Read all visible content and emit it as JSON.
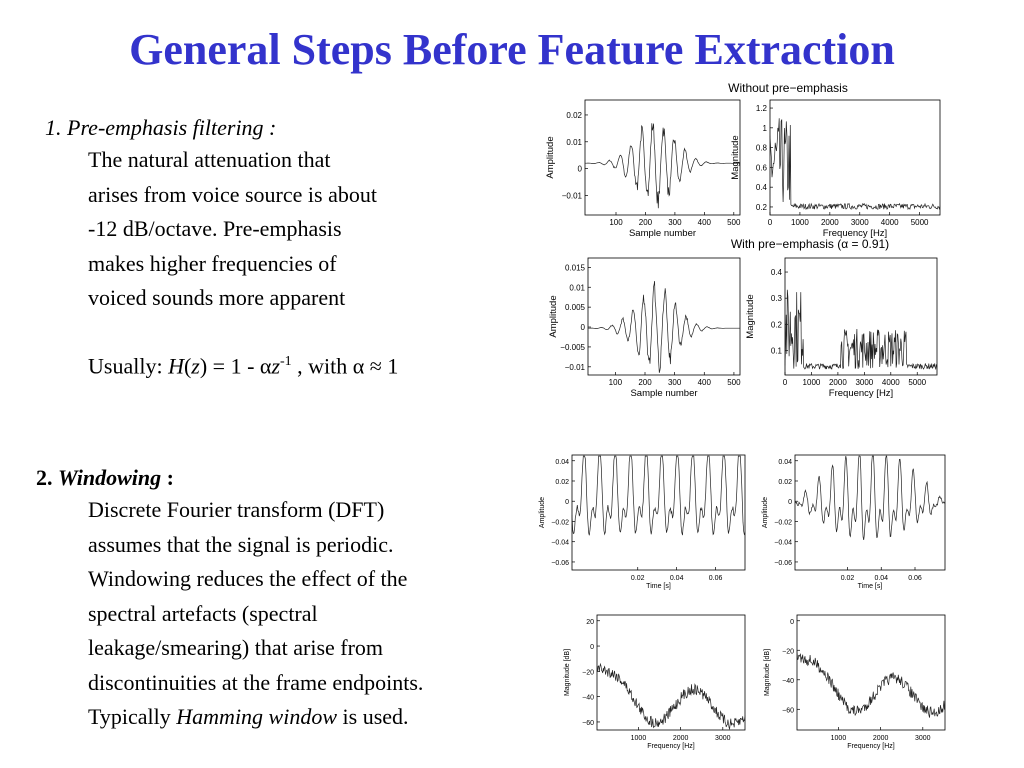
{
  "title": "General Steps Before Feature Extraction",
  "section1": {
    "heading": "1. Pre-emphasis filtering :",
    "lines": [
      "The natural attenuation that",
      "arises from voice source is about",
      "-12 dB/octave. Pre-emphasis",
      "makes higher frequencies of",
      "voiced sounds more apparent"
    ],
    "formula": [
      "Usually: ",
      "H",
      "(",
      "z",
      ") = 1 - α",
      "z",
      "-1",
      " , with α ≈ 1"
    ]
  },
  "section2": {
    "number": "2.",
    "heading": "Windowing",
    "colon": " :",
    "lines": [
      "Discrete Fourier transform (DFT)",
      "assumes that the signal is periodic.",
      "Windowing reduces the effect of the",
      "spectral artefacts (spectral",
      "leakage/smearing) that arise from",
      "discontinuities at the frame endpoints."
    ],
    "last_line": [
      "Typically ",
      "Hamming window",
      " is used."
    ]
  },
  "figure1": {
    "title_top": "Without pre−emphasis",
    "title_bottom": "With pre−emphasis (α = 0.91)",
    "panels": [
      {
        "ylabel": "Amplitude",
        "xlabel": "Sample number",
        "yticks": [
          "0.02",
          "0.01",
          "0",
          "−0.01"
        ],
        "xticks": [
          "100",
          "200",
          "300",
          "400",
          "500"
        ]
      },
      {
        "ylabel": "Magnitude",
        "xlabel": "Frequency [Hz]",
        "yticks": [
          "1.2",
          "1",
          "0.8",
          "0.6",
          "0.4",
          "0.2"
        ],
        "xticks": [
          "0",
          "1000",
          "2000",
          "3000",
          "4000",
          "5000"
        ]
      },
      {
        "ylabel": "Amplitude",
        "xlabel": "Sample number",
        "yticks": [
          "0.015",
          "0.01",
          "0.005",
          "0",
          "−0.005",
          "−0.01"
        ],
        "xticks": [
          "100",
          "200",
          "300",
          "400",
          "500"
        ]
      },
      {
        "ylabel": "Magnitude",
        "xlabel": "Frequency [Hz]",
        "yticks": [
          "0.4",
          "0.3",
          "0.2",
          "0.1"
        ],
        "xticks": [
          "0",
          "1000",
          "2000",
          "3000",
          "4000",
          "5000"
        ]
      }
    ]
  },
  "figure2": {
    "panels": [
      {
        "ylabel": "Amplitude",
        "xlabel": "Time [s]",
        "yticks": [
          "0.04",
          "0.02",
          "0",
          "−0.02",
          "−0.04",
          "−0.06"
        ],
        "xticks": [
          "0.02",
          "0.04",
          "0.06"
        ]
      },
      {
        "ylabel": "Amplitude",
        "xlabel": "Time [s]",
        "yticks": [
          "0.04",
          "0.02",
          "0",
          "−0.02",
          "−0.04",
          "−0.06"
        ],
        "xticks": [
          "0.02",
          "0.04",
          "0.06"
        ]
      },
      {
        "ylabel": "Magnitude [dB]",
        "xlabel": "Frequency [Hz]",
        "yticks": [
          "20",
          "0",
          "−20",
          "−40",
          "−60"
        ],
        "xticks": [
          "1000",
          "2000",
          "3000"
        ]
      },
      {
        "ylabel": "Magnitude [dB]",
        "xlabel": "Frequency [Hz]",
        "yticks": [
          "0",
          "−20",
          "−40",
          "−60"
        ],
        "xticks": [
          "1000",
          "2000",
          "3000"
        ]
      }
    ]
  }
}
